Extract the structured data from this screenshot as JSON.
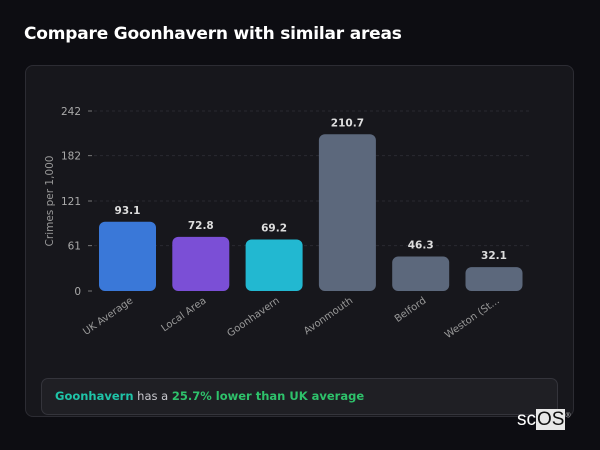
{
  "header": {
    "title": "Compare Goonhavern with similar areas"
  },
  "chart_data": {
    "type": "bar",
    "categories": [
      "UK Average",
      "Local Area",
      "Goonhavern",
      "Avonmouth",
      "Belford",
      "Weston (St..."
    ],
    "values": [
      93.1,
      72.8,
      69.2,
      210.7,
      46.3,
      32.1
    ],
    "data_labels": [
      "93.1",
      "72.8",
      "69.2",
      "210.7",
      "46.3",
      "32.1"
    ],
    "colors": [
      "#3a78d8",
      "#7b4fd6",
      "#22b8d1",
      "#5c687c",
      "#5c687c",
      "#5c687c"
    ],
    "ylabel": "Crimes per 1,000",
    "xlabel": "",
    "yticks": [
      0,
      61,
      121,
      182,
      242
    ],
    "ylim": [
      0,
      242
    ],
    "grid": true,
    "legend": "none"
  },
  "summary": {
    "area": "Goonhavern",
    "middle": " has a ",
    "highlight": "25.7% lower than UK average"
  },
  "logo": {
    "prefix": "sc",
    "suffix": "OS",
    "mark": "®"
  }
}
